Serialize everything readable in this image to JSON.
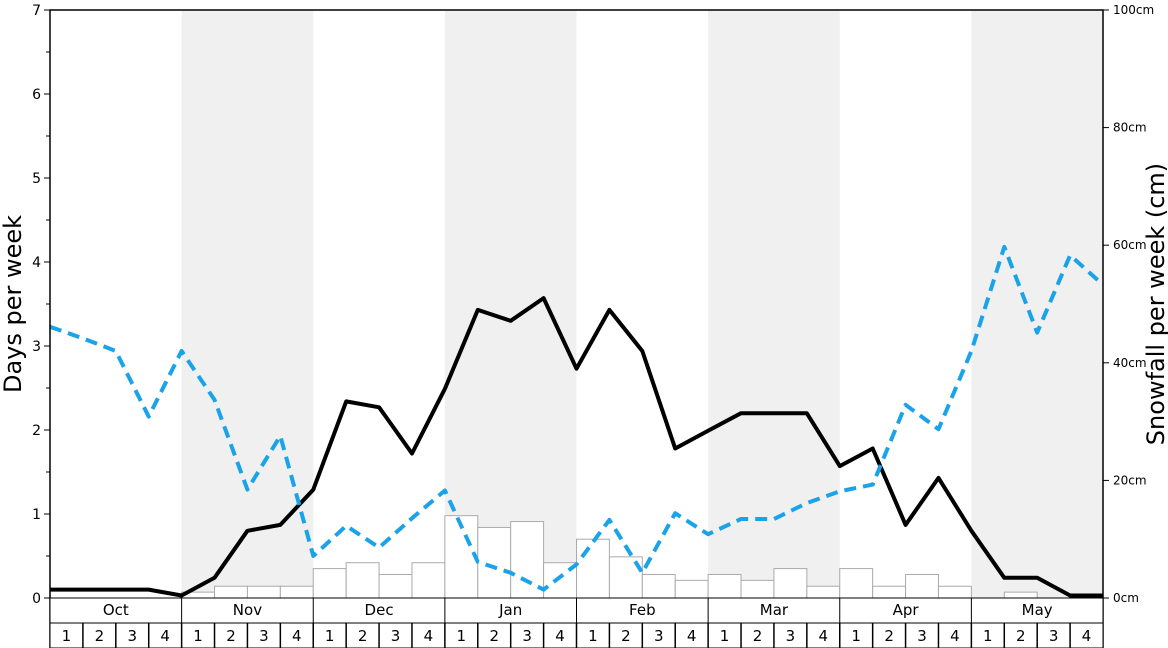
{
  "chart_data": {
    "type": "bar",
    "ylabel_left": "Days per week",
    "ylabel_right": "Snowfall per week (cm)",
    "ylim_left": [
      0,
      7
    ],
    "ylim_right": [
      0,
      100
    ],
    "left_ticks": [
      "0",
      "1",
      "2",
      "3",
      "4",
      "5",
      "6",
      "7"
    ],
    "right_ticks": [
      "0cm",
      "20cm",
      "40cm",
      "60cm",
      "80cm",
      "100cm"
    ],
    "months": [
      "Oct",
      "Nov",
      "Dec",
      "Jan",
      "Feb",
      "Mar",
      "Apr",
      "May"
    ],
    "week_labels": [
      "1",
      "2",
      "3",
      "4"
    ],
    "colors": {
      "band": "#f0f0f0",
      "bar_fill": "#ffffff",
      "bar_stroke": "#aaaaaa",
      "solid_line": "#000000",
      "dashed_line": "#1aa3e8"
    },
    "snowfall_cm": [
      0,
      0,
      0,
      0,
      1,
      2,
      2,
      2,
      5,
      6,
      4,
      6,
      14,
      12,
      13,
      6,
      10,
      7,
      4,
      3,
      4,
      3,
      5,
      2,
      5,
      2,
      4,
      2,
      0,
      1,
      0,
      0
    ],
    "series": [
      {
        "style": "solid",
        "axis": "left",
        "values": [
          0.1,
          0.1,
          0.1,
          0.1,
          0.03,
          0.24,
          0.8,
          0.87,
          1.29,
          2.34,
          2.27,
          1.72,
          2.49,
          3.43,
          3.3,
          3.57,
          2.73,
          3.43,
          2.94,
          1.78,
          1.99,
          2.2,
          2.2,
          2.2,
          1.57,
          1.78,
          0.87,
          1.43,
          0.8,
          0.24,
          0.24,
          0.03,
          0.03
        ]
      },
      {
        "style": "dashed",
        "axis": "left",
        "values": [
          3.23,
          3.09,
          2.94,
          2.16,
          2.94,
          2.36,
          1.29,
          1.93,
          0.5,
          0.86,
          0.6,
          0.95,
          1.28,
          0.43,
          0.3,
          0.1,
          0.4,
          0.93,
          0.3,
          1.01,
          0.76,
          0.94,
          0.94,
          1.13,
          1.27,
          1.35,
          2.3,
          2.01,
          2.94,
          4.18,
          3.16,
          4.08,
          3.73
        ]
      }
    ]
  }
}
